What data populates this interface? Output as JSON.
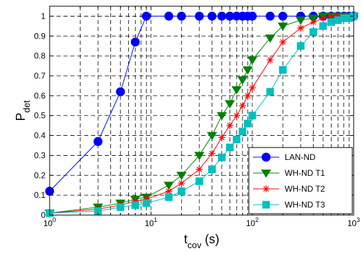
{
  "chart_data": {
    "type": "line",
    "x_scale": "log",
    "xlim": [
      1,
      1000
    ],
    "ylim": [
      0,
      1.05
    ],
    "grid": true,
    "legend_position": "bottom-right",
    "xlabel": {
      "main": "t",
      "sub": "cov",
      "suffix": " (s)"
    },
    "ylabel": {
      "main": "P",
      "sub": "det"
    },
    "x_ticks": [
      {
        "value": 1,
        "base": "10",
        "exp": "0"
      },
      {
        "value": 10,
        "base": "10",
        "exp": "1"
      },
      {
        "value": 100,
        "base": "10",
        "exp": "2"
      },
      {
        "value": 1000,
        "base": "10",
        "exp": "3"
      }
    ],
    "y_ticks": [
      {
        "value": 0,
        "label": "0"
      },
      {
        "value": 0.1,
        "label": "0.1"
      },
      {
        "value": 0.2,
        "label": "0.2"
      },
      {
        "value": 0.3,
        "label": "0.3"
      },
      {
        "value": 0.4,
        "label": "0.4"
      },
      {
        "value": 0.5,
        "label": "0.5"
      },
      {
        "value": 0.6,
        "label": "0.6"
      },
      {
        "value": 0.7,
        "label": "0.7"
      },
      {
        "value": 0.8,
        "label": "0.8"
      },
      {
        "value": 0.9,
        "label": "0.9"
      },
      {
        "value": 1,
        "label": "1"
      }
    ],
    "series": [
      {
        "name": "LAN-ND",
        "color": "#0000ff",
        "marker": "circle",
        "x": [
          1,
          3,
          5,
          7,
          9,
          15,
          20,
          30,
          40,
          50,
          60,
          70,
          80,
          90,
          100,
          150,
          200,
          300,
          400,
          500,
          600,
          700,
          800,
          900,
          1000
        ],
        "y": [
          0.12,
          0.37,
          0.62,
          0.87,
          1,
          1,
          1,
          1,
          1,
          1,
          1,
          1,
          1,
          1,
          1,
          1,
          1,
          1,
          1,
          1,
          1,
          1,
          1,
          1,
          1
        ]
      },
      {
        "name": "WH-ND T1",
        "color": "#008000",
        "marker": "triangle-down",
        "x": [
          1,
          3,
          5,
          7,
          9,
          15,
          20,
          30,
          40,
          50,
          60,
          70,
          80,
          90,
          100,
          150,
          200,
          300,
          400,
          500,
          600,
          700,
          800,
          900,
          1000
        ],
        "y": [
          0.01,
          0.04,
          0.06,
          0.08,
          0.09,
          0.15,
          0.2,
          0.3,
          0.4,
          0.5,
          0.56,
          0.63,
          0.68,
          0.73,
          0.78,
          0.89,
          0.95,
          0.98,
          0.99,
          1,
          1,
          1,
          1,
          1,
          1
        ]
      },
      {
        "name": "WH-ND T2",
        "color": "#ff0000",
        "marker": "asterisk",
        "x": [
          1,
          3,
          5,
          7,
          9,
          15,
          20,
          30,
          40,
          50,
          60,
          70,
          80,
          90,
          100,
          150,
          200,
          300,
          400,
          500,
          600,
          700,
          800,
          900,
          1000
        ],
        "y": [
          0.01,
          0.03,
          0.05,
          0.07,
          0.08,
          0.12,
          0.16,
          0.23,
          0.31,
          0.39,
          0.45,
          0.5,
          0.55,
          0.6,
          0.64,
          0.78,
          0.87,
          0.94,
          0.97,
          0.99,
          1,
          1,
          1,
          1,
          1
        ]
      },
      {
        "name": "WH-ND T3",
        "color": "#00bfbf",
        "marker": "square",
        "x": [
          1,
          3,
          5,
          7,
          9,
          15,
          20,
          30,
          40,
          50,
          60,
          70,
          80,
          90,
          100,
          150,
          200,
          300,
          400,
          500,
          600,
          700,
          800,
          900,
          1000
        ],
        "y": [
          0.01,
          0.02,
          0.04,
          0.05,
          0.06,
          0.09,
          0.12,
          0.17,
          0.23,
          0.29,
          0.34,
          0.38,
          0.42,
          0.46,
          0.5,
          0.62,
          0.73,
          0.85,
          0.92,
          0.95,
          0.97,
          0.98,
          0.99,
          0.99,
          1
        ]
      }
    ]
  }
}
